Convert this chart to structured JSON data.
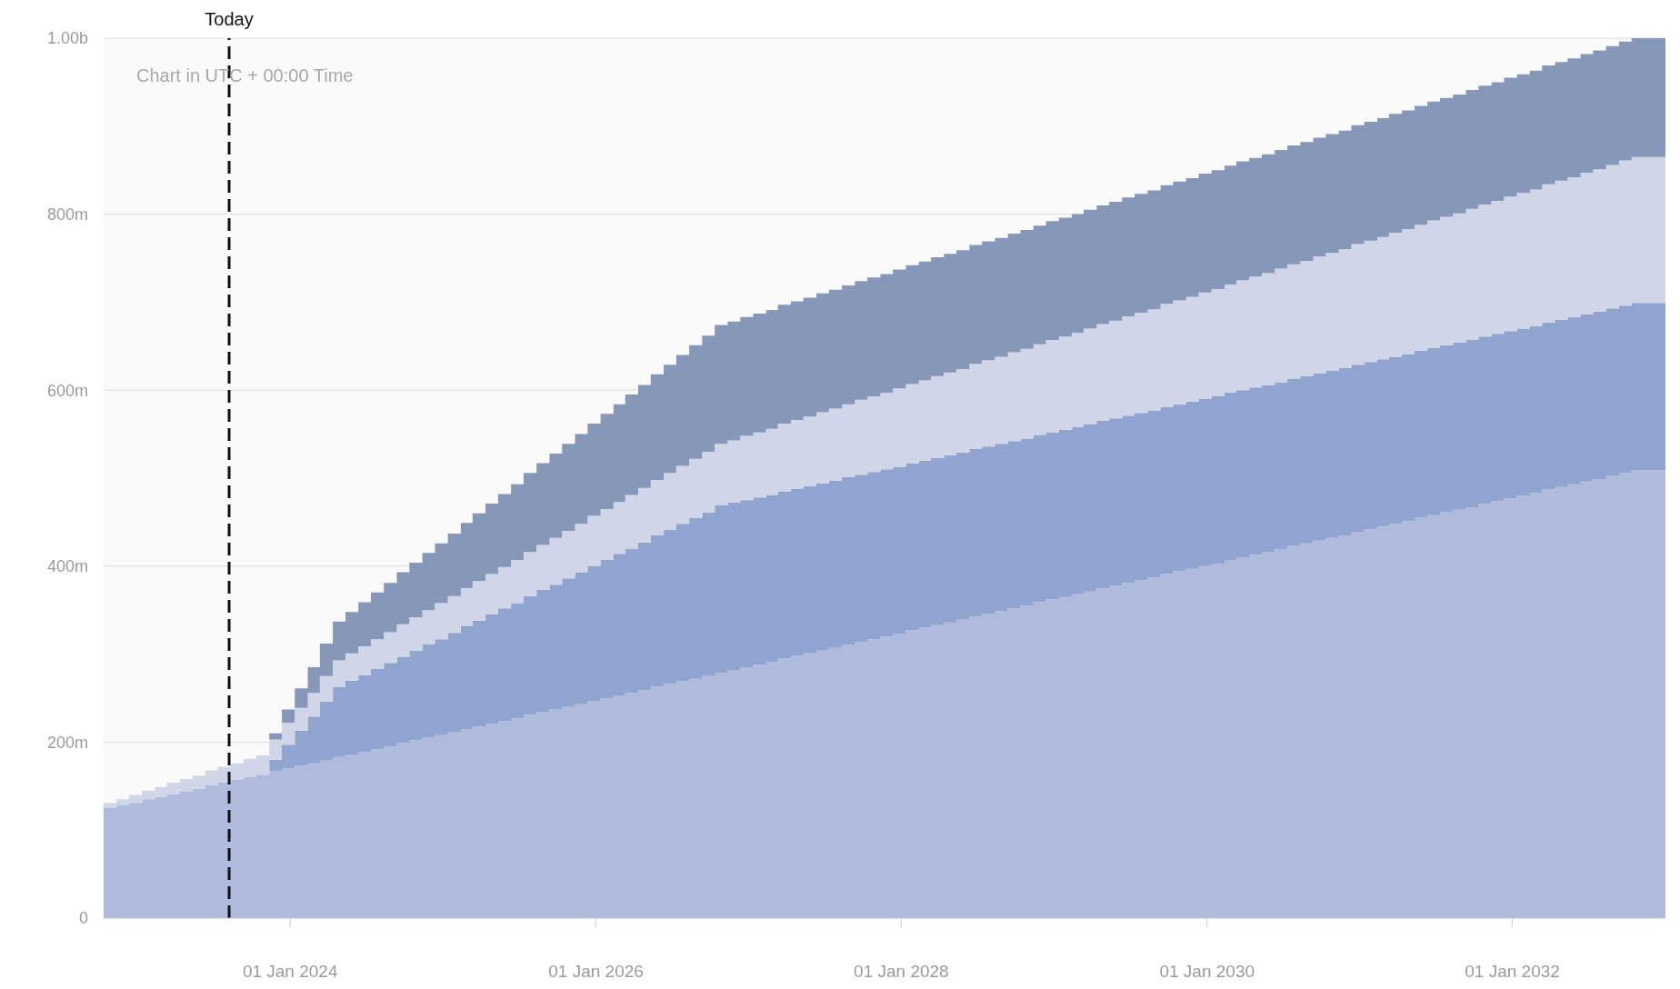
{
  "chart_data": {
    "type": "area",
    "stacked": true,
    "x": [
      "2022-10-12",
      "2022-11-12",
      "2022-12-12",
      "2023-01-12",
      "2023-02-12",
      "2023-03-12",
      "2023-04-12",
      "2023-05-12",
      "2023-06-12",
      "2023-07-12",
      "2023-08-12",
      "2023-09-12",
      "2023-10-12",
      "2023-11-12",
      "2023-12-12",
      "2024-01-12",
      "2024-02-12",
      "2024-03-12",
      "2024-04-12",
      "2024-05-12",
      "2024-06-12",
      "2024-07-12",
      "2024-08-12",
      "2024-09-12",
      "2024-10-12",
      "2024-11-12",
      "2024-12-12",
      "2025-01-12",
      "2025-02-12",
      "2025-03-12",
      "2025-04-12",
      "2025-05-12",
      "2025-06-12",
      "2025-07-12",
      "2025-08-12",
      "2025-09-12",
      "2025-10-12",
      "2025-11-12",
      "2025-12-12",
      "2026-01-12",
      "2026-02-12",
      "2026-03-12",
      "2026-04-12",
      "2026-05-12",
      "2026-06-12",
      "2026-07-12",
      "2026-08-12",
      "2026-09-12",
      "2026-10-12",
      "2026-11-12",
      "2026-12-12",
      "2027-01-12",
      "2027-02-12",
      "2027-03-12",
      "2027-04-12",
      "2027-05-12",
      "2027-06-12",
      "2027-07-12",
      "2027-08-12",
      "2027-09-12",
      "2027-10-12",
      "2027-11-12",
      "2027-12-12",
      "2028-01-12",
      "2028-02-12",
      "2028-03-12",
      "2028-04-12",
      "2028-05-12",
      "2028-06-12",
      "2028-07-12",
      "2028-08-12",
      "2028-09-12",
      "2028-10-12",
      "2028-11-12",
      "2028-12-12",
      "2029-01-12",
      "2029-02-12",
      "2029-03-12",
      "2029-04-12",
      "2029-05-12",
      "2029-06-12",
      "2029-07-12",
      "2029-08-12",
      "2029-09-12",
      "2029-10-12",
      "2029-11-12",
      "2029-12-12",
      "2030-01-12",
      "2030-02-12",
      "2030-03-12",
      "2030-04-12",
      "2030-05-12",
      "2030-06-12",
      "2030-07-12",
      "2030-08-12",
      "2030-09-12",
      "2030-10-12",
      "2030-11-12",
      "2030-12-12",
      "2031-01-12",
      "2031-02-12",
      "2031-03-12",
      "2031-04-12",
      "2031-05-12",
      "2031-06-12",
      "2031-07-12",
      "2031-08-12",
      "2031-09-12",
      "2031-10-12",
      "2031-11-12",
      "2031-12-12",
      "2032-01-12",
      "2032-02-12",
      "2032-03-12",
      "2032-04-12",
      "2032-05-12",
      "2032-06-12",
      "2032-07-12",
      "2032-08-12",
      "2032-09-12",
      "2032-10-12",
      "2032-11-12",
      "2032-12-12",
      "2033-01-01"
    ],
    "series": [
      {
        "color": "#aebbdd",
        "values": [
          125000000,
          128000000,
          131000000,
          135000000,
          138000000,
          141000000,
          144000000,
          147000000,
          151000000,
          154000000,
          157000000,
          160000000,
          163000000,
          167000000,
          170000000,
          173000000,
          176000000,
          179000000,
          183000000,
          186000000,
          189000000,
          192000000,
          195000000,
          199000000,
          202000000,
          205000000,
          208000000,
          211000000,
          215000000,
          218000000,
          221000000,
          224000000,
          227000000,
          231000000,
          234000000,
          237000000,
          240000000,
          243000000,
          247000000,
          250000000,
          253000000,
          256000000,
          259000000,
          263000000,
          266000000,
          269000000,
          272000000,
          275000000,
          279000000,
          282000000,
          285000000,
          288000000,
          291000000,
          295000000,
          298000000,
          301000000,
          304000000,
          307000000,
          311000000,
          314000000,
          317000000,
          320000000,
          323000000,
          327000000,
          330000000,
          333000000,
          336000000,
          339000000,
          343000000,
          346000000,
          349000000,
          352000000,
          355000000,
          359000000,
          362000000,
          365000000,
          368000000,
          371000000,
          375000000,
          378000000,
          381000000,
          384000000,
          387000000,
          391000000,
          394000000,
          397000000,
          400000000,
          403000000,
          407000000,
          410000000,
          413000000,
          416000000,
          419000000,
          423000000,
          426000000,
          429000000,
          432000000,
          435000000,
          439000000,
          442000000,
          445000000,
          448000000,
          451000000,
          455000000,
          458000000,
          461000000,
          464000000,
          467000000,
          471000000,
          474000000,
          477000000,
          480000000,
          483000000,
          487000000,
          490000000,
          493000000,
          496000000,
          499000000,
          503000000,
          506000000,
          509000000,
          509000000,
          509000000,
          509000000
        ]
      },
      {
        "color": "#90a4cf",
        "values": [
          0,
          0,
          0,
          0,
          0,
          0,
          0,
          0,
          0,
          0,
          0,
          0,
          0,
          13000000,
          27000000,
          40000000,
          53000000,
          67000000,
          80000000,
          84000000,
          87000000,
          91000000,
          95000000,
          98000000,
          102000000,
          106000000,
          109000000,
          113000000,
          117000000,
          120000000,
          124000000,
          128000000,
          131000000,
          135000000,
          139000000,
          142000000,
          146000000,
          150000000,
          153000000,
          157000000,
          161000000,
          164000000,
          168000000,
          172000000,
          175000000,
          179000000,
          183000000,
          186000000,
          190000000,
          190000000,
          190000000,
          190000000,
          190000000,
          190000000,
          190000000,
          190000000,
          190000000,
          190000000,
          190000000,
          190000000,
          190000000,
          190000000,
          190000000,
          190000000,
          190000000,
          190000000,
          190000000,
          190000000,
          190000000,
          190000000,
          190000000,
          190000000,
          190000000,
          190000000,
          190000000,
          190000000,
          190000000,
          190000000,
          190000000,
          190000000,
          190000000,
          190000000,
          190000000,
          190000000,
          190000000,
          190000000,
          190000000,
          190000000,
          190000000,
          190000000,
          190000000,
          190000000,
          190000000,
          190000000,
          190000000,
          190000000,
          190000000,
          190000000,
          190000000,
          190000000,
          190000000,
          190000000,
          190000000,
          190000000,
          190000000,
          190000000,
          190000000,
          190000000,
          190000000,
          190000000,
          190000000,
          190000000,
          190000000,
          190000000,
          190000000,
          190000000,
          190000000,
          190000000,
          190000000,
          190000000,
          190000000,
          190000000,
          190000000,
          190000000
        ]
      },
      {
        "color": "#d0d6e8",
        "values": [
          6000000,
          7000000,
          9000000,
          10000000,
          11000000,
          13000000,
          14000000,
          15000000,
          17000000,
          18000000,
          19000000,
          21000000,
          22000000,
          23000000,
          25000000,
          26000000,
          27000000,
          29000000,
          30000000,
          31000000,
          33000000,
          34000000,
          35000000,
          37000000,
          38000000,
          39000000,
          41000000,
          42000000,
          43000000,
          45000000,
          46000000,
          47000000,
          49000000,
          50000000,
          51000000,
          53000000,
          54000000,
          55000000,
          57000000,
          58000000,
          59000000,
          61000000,
          62000000,
          63000000,
          65000000,
          66000000,
          67000000,
          69000000,
          70000000,
          71000000,
          73000000,
          74000000,
          75000000,
          77000000,
          78000000,
          79000000,
          81000000,
          82000000,
          83000000,
          85000000,
          86000000,
          87000000,
          89000000,
          90000000,
          91000000,
          93000000,
          94000000,
          95000000,
          97000000,
          98000000,
          99000000,
          101000000,
          102000000,
          103000000,
          105000000,
          106000000,
          107000000,
          109000000,
          110000000,
          111000000,
          113000000,
          114000000,
          115000000,
          117000000,
          118000000,
          119000000,
          121000000,
          122000000,
          123000000,
          125000000,
          126000000,
          127000000,
          129000000,
          130000000,
          131000000,
          133000000,
          134000000,
          135000000,
          137000000,
          138000000,
          139000000,
          141000000,
          142000000,
          143000000,
          145000000,
          146000000,
          147000000,
          149000000,
          150000000,
          151000000,
          153000000,
          154000000,
          155000000,
          157000000,
          158000000,
          159000000,
          161000000,
          162000000,
          163000000,
          165000000,
          166000000,
          166000000,
          166000000,
          166000000
        ]
      },
      {
        "color": "#8797ba",
        "values": [
          0,
          0,
          0,
          0,
          0,
          0,
          0,
          0,
          0,
          0,
          0,
          0,
          0,
          7000000,
          15000000,
          22000000,
          29000000,
          37000000,
          44000000,
          47000000,
          50000000,
          53000000,
          56000000,
          59000000,
          62000000,
          65000000,
          68000000,
          71000000,
          74000000,
          77000000,
          80000000,
          83000000,
          86000000,
          90000000,
          93000000,
          96000000,
          99000000,
          102000000,
          105000000,
          108000000,
          111000000,
          114000000,
          117000000,
          120000000,
          123000000,
          126000000,
          129000000,
          132000000,
          135000000,
          135000000,
          135000000,
          135000000,
          135000000,
          135000000,
          135000000,
          135000000,
          135000000,
          135000000,
          135000000,
          135000000,
          135000000,
          135000000,
          135000000,
          135000000,
          135000000,
          135000000,
          135000000,
          135000000,
          135000000,
          135000000,
          135000000,
          135000000,
          135000000,
          135000000,
          135000000,
          135000000,
          135000000,
          135000000,
          135000000,
          135000000,
          135000000,
          135000000,
          135000000,
          135000000,
          135000000,
          135000000,
          135000000,
          135000000,
          135000000,
          135000000,
          135000000,
          135000000,
          135000000,
          135000000,
          135000000,
          135000000,
          135000000,
          135000000,
          135000000,
          135000000,
          135000000,
          135000000,
          135000000,
          135000000,
          135000000,
          135000000,
          135000000,
          135000000,
          135000000,
          135000000,
          135000000,
          135000000,
          135000000,
          135000000,
          135000000,
          135000000,
          135000000,
          135000000,
          135000000,
          135000000,
          135000000,
          135000000,
          135000000,
          135000000
        ]
      }
    ],
    "xlim": [
      "2022-10-12",
      "2033-01-01"
    ],
    "xticks": [
      {
        "value": "2024-01-01",
        "label": "01 Jan 2024"
      },
      {
        "value": "2026-01-01",
        "label": "01 Jan 2026"
      },
      {
        "value": "2028-01-01",
        "label": "01 Jan 2028"
      },
      {
        "value": "2030-01-01",
        "label": "01 Jan 2030"
      },
      {
        "value": "2032-01-01",
        "label": "01 Jan 2032"
      }
    ],
    "ylim": [
      0,
      1000000000
    ],
    "yticks": [
      0,
      {
        "value": 200000000,
        "label": "200m"
      },
      {
        "value": 400000000,
        "label": "400m"
      },
      {
        "value": 600000000,
        "label": "600m"
      },
      {
        "value": 800000000,
        "label": "800m"
      },
      {
        "value": 1000000000,
        "label": "1.00b"
      }
    ],
    "grid": "y",
    "ref_lines": [
      {
        "axis": "x",
        "value": "2023-08-08",
        "label": "Today",
        "color": "#111111",
        "line_style": "dashed"
      }
    ],
    "annotations": [
      "Chart in UTC + 00:00 Time"
    ]
  }
}
